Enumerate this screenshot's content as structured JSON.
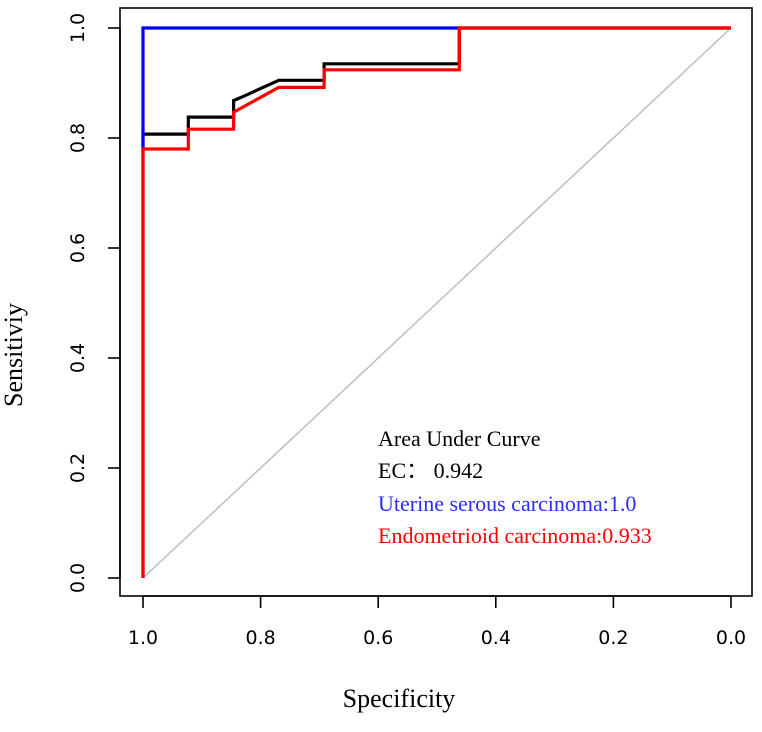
{
  "chart_data": {
    "type": "line",
    "title": "",
    "xlabel": "Specificity",
    "ylabel": "Sensitiviy",
    "xlim": [
      1.0,
      0.0
    ],
    "ylim": [
      0.0,
      1.0
    ],
    "x_ticks": [
      "1.0",
      "0.8",
      "0.6",
      "0.4",
      "0.2",
      "0.0"
    ],
    "x_tick_values": [
      1.0,
      0.8,
      0.6,
      0.4,
      0.2,
      0.0
    ],
    "y_ticks": [
      "0.0",
      "0.2",
      "0.4",
      "0.6",
      "0.8",
      "1.0"
    ],
    "y_tick_values": [
      0.0,
      0.2,
      0.4,
      0.6,
      0.8,
      1.0
    ],
    "grid": false,
    "reference_line": {
      "from": [
        1.0,
        0.0
      ],
      "to": [
        0.0,
        1.0
      ],
      "color": "#bebebe"
    },
    "series": [
      {
        "name": "EC",
        "color": "#000000",
        "points": [
          [
            1.0,
            0.0
          ],
          [
            1.0,
            0.807
          ],
          [
            0.923,
            0.807
          ],
          [
            0.923,
            0.838
          ],
          [
            0.846,
            0.838
          ],
          [
            0.846,
            0.868
          ],
          [
            0.831,
            0.875
          ],
          [
            0.769,
            0.905
          ],
          [
            0.692,
            0.905
          ],
          [
            0.692,
            0.935
          ],
          [
            0.462,
            0.935
          ],
          [
            0.462,
            1.0
          ],
          [
            0.0,
            1.0
          ]
        ]
      },
      {
        "name": "Uterine serous carcinoma",
        "color": "#0000ff",
        "points": [
          [
            1.0,
            0.78
          ],
          [
            1.0,
            1.0
          ],
          [
            0.462,
            1.0
          ]
        ]
      },
      {
        "name": "Endometrioid carcinoma",
        "color": "#ff0000",
        "points": [
          [
            1.0,
            0.0
          ],
          [
            1.0,
            0.78
          ],
          [
            0.923,
            0.78
          ],
          [
            0.923,
            0.816
          ],
          [
            0.846,
            0.816
          ],
          [
            0.846,
            0.847
          ],
          [
            0.769,
            0.892
          ],
          [
            0.692,
            0.892
          ],
          [
            0.692,
            0.924
          ],
          [
            0.462,
            0.924
          ],
          [
            0.462,
            1.0
          ],
          [
            0.0,
            1.0
          ]
        ]
      }
    ],
    "legend": {
      "position": "bottom-right",
      "title": "Area Under Curve",
      "entries": [
        {
          "text": "EC：  0.942",
          "color": "#000000"
        },
        {
          "text": "Uterine serous carcinoma:1.0",
          "color": "#2b2bff"
        },
        {
          "text": "Endometrioid carcinoma:0.933",
          "color": "#ff0000"
        }
      ]
    }
  }
}
